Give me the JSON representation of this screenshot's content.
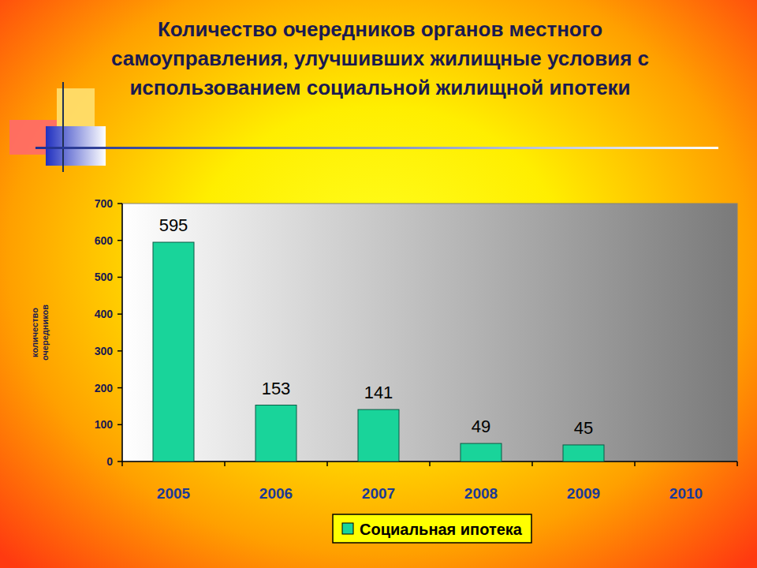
{
  "chart_data": {
    "type": "bar",
    "title": "Количество очередников органов местного самоуправления, улучшивших жилищные условия с использованием социальной жилищной ипотеки",
    "y_label": "количество очередников",
    "categories": [
      "2005",
      "2006",
      "2007",
      "2008",
      "2009",
      "2010"
    ],
    "series": [
      {
        "name": "Социальная ипотека",
        "color": "#19d49a",
        "values": [
          595,
          153,
          141,
          49,
          45,
          null
        ]
      }
    ],
    "ylim": [
      0,
      700
    ],
    "yticks": [
      0,
      100,
      200,
      300,
      400,
      500,
      600,
      700
    ],
    "grid": false,
    "data_labels": true,
    "legend": "bottom"
  }
}
